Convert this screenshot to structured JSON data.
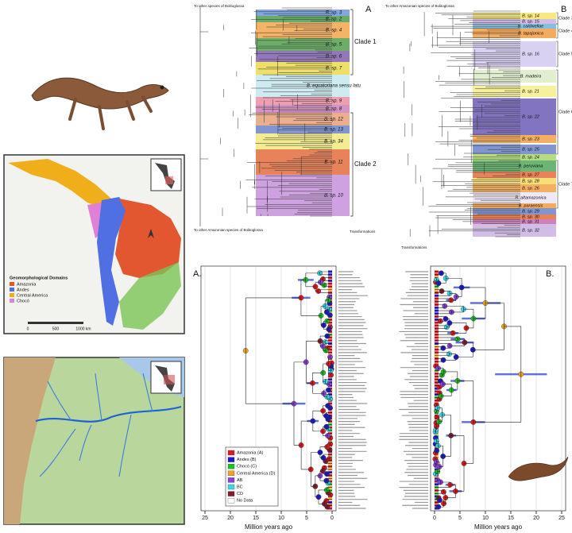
{
  "map_legend": {
    "title": "Geomorphological Domains",
    "items": [
      {
        "label": "Amazonia",
        "color": "#e2572f"
      },
      {
        "label": "Andes",
        "color": "#4f6fe3"
      },
      {
        "label": "Central America",
        "color": "#f0ae1a"
      },
      {
        "label": "Chocó",
        "color": "#e07fd6"
      }
    ],
    "scale": [
      "0",
      "500",
      "1000 km"
    ]
  },
  "tree_a": {
    "letter": "A",
    "top_note": "To other species of Bolitoglossa",
    "bottom_note": "To other Amazonian species of Bolitoglossa",
    "scale_note": "Transformations",
    "clades": [
      "Clade 1",
      "Clade 2"
    ],
    "taxa": [
      {
        "label": "B. sp. 3",
        "color": "#6d97da"
      },
      {
        "label": "B. sp. 2",
        "color": "#4e9e50"
      },
      {
        "label": "B. sp. 4",
        "color": "#f2a64c"
      },
      {
        "label": "B. sp. 5",
        "color": "#52a04c"
      },
      {
        "label": "B. sp. 6",
        "color": "#8060ad"
      },
      {
        "label": "B. sp. 7",
        "color": "#ead94e"
      },
      {
        "label": "B. equatoriana sensu latu",
        "color": "#c4e8ef"
      },
      {
        "label": "B. sp. 9",
        "color": "#eb8fa4"
      },
      {
        "label": "B. sp. 8",
        "color": "#cc80b8"
      },
      {
        "label": "B. sp. 12",
        "color": "#e8a07a"
      },
      {
        "label": "B. sp. 13",
        "color": "#6d83c8"
      },
      {
        "label": "B. sp. 34",
        "color": "#f1e97c"
      },
      {
        "label": "B. sp. 11",
        "color": "#e26d3d"
      },
      {
        "label": "B. sp. 10",
        "color": "#c690dc"
      }
    ]
  },
  "tree_b": {
    "letter": "B",
    "top_note": "To other Amazonian species of Bolitoglossa",
    "scale_note": "Transformations",
    "clades": [
      "Clade 3",
      "Clade 4",
      "Clade 5",
      "Clade 6",
      "Clade 7"
    ],
    "taxa": [
      {
        "label": "B. sp. 14",
        "color": "#f4e56a"
      },
      {
        "label": "B. sp. 15",
        "color": "#c9b2e2"
      },
      {
        "label": "B. caldwellae",
        "color": "#70b4da"
      },
      {
        "label": "B. tapajonica",
        "color": "#f29c42"
      },
      {
        "label": "B. sp. 16",
        "color": "#d2c9ee"
      },
      {
        "label": "B. madeira",
        "color": "#dcecc8"
      },
      {
        "label": "B. sp. 21",
        "color": "#f5ef8c"
      },
      {
        "label": "B. sp. 22",
        "color": "#6c5cb6"
      },
      {
        "label": "B. sp. 23",
        "color": "#f2a246"
      },
      {
        "label": "B. sp. 25",
        "color": "#6d83c8"
      },
      {
        "label": "B. sp. 24",
        "color": "#a9d66c"
      },
      {
        "label": "B. peruviana",
        "color": "#52a85c"
      },
      {
        "label": "B. sp. 27",
        "color": "#e46c3c"
      },
      {
        "label": "B. sp. 28",
        "color": "#f4d862"
      },
      {
        "label": "B. sp. 26",
        "color": "#f2a246"
      },
      {
        "label": "B. altamazonica",
        "color": "#ece4f6"
      },
      {
        "label": "B. paraensis",
        "color": "#f29c42"
      },
      {
        "label": "B. sp. 29",
        "color": "#6d83c8"
      },
      {
        "label": "B. sp. 30",
        "color": "#e46c3c"
      },
      {
        "label": "B. sp. 31",
        "color": "#c46cb2"
      },
      {
        "label": "B. sp. 32",
        "color": "#c9b2e2"
      }
    ]
  },
  "time_tree_a": {
    "letter": "A.",
    "axis_label": "Million years ago",
    "xlim": [
      25,
      0
    ],
    "ticks": [
      25,
      20,
      15,
      10,
      5,
      0
    ],
    "legend": [
      {
        "label": "Amazonia (A)",
        "color": "#e8161b"
      },
      {
        "label": "Andes (B)",
        "color": "#1a1ad6"
      },
      {
        "label": "Chocó (C)",
        "color": "#19c41e"
      },
      {
        "label": "Central America (D)",
        "color": "#f5a318"
      },
      {
        "label": "AB",
        "color": "#8e3ee0"
      },
      {
        "label": "BC",
        "color": "#35d8ea"
      },
      {
        "label": "CD",
        "color": "#8a1a2a"
      },
      {
        "label": "No Data",
        "color": "#ffffff"
      }
    ]
  },
  "time_tree_b": {
    "letter": "B.",
    "axis_label": "Million years ago",
    "xlim": [
      0,
      25
    ],
    "ticks": [
      0,
      5,
      10,
      15,
      20,
      25
    ]
  }
}
